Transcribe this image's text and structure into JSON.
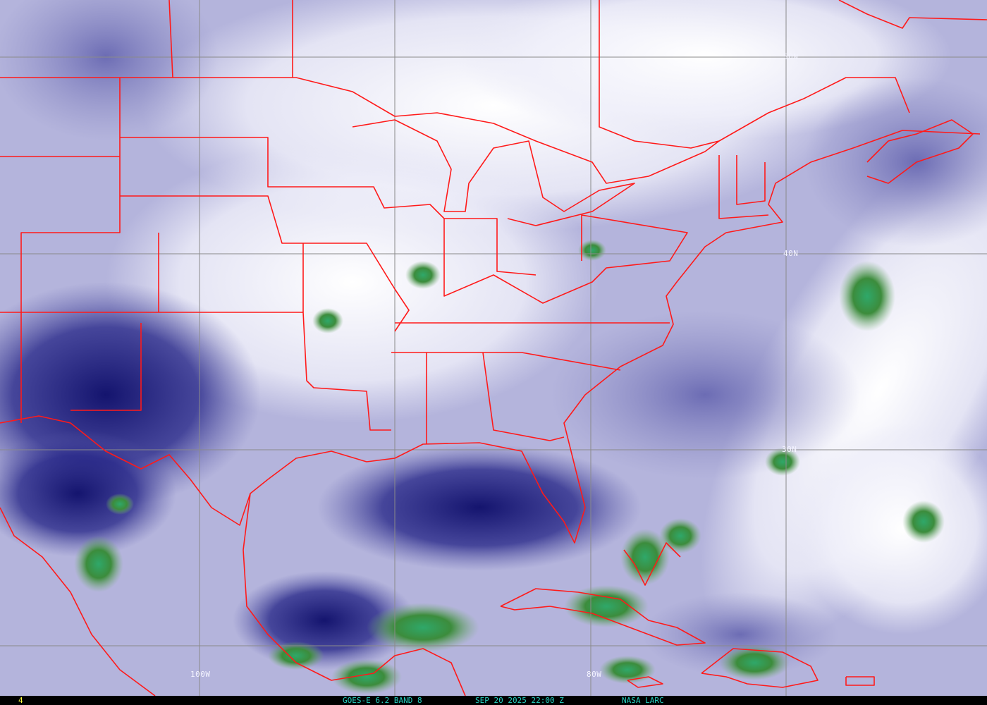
{
  "grid_labels": {
    "lat_50": "50N",
    "lat_40": "40N",
    "lat_30": "30N",
    "lon_100": "100W",
    "lon_80": "80W"
  },
  "footer": {
    "frame_number": "4",
    "product": "GOES-E 6.2 BAND 8",
    "timestamp": "SEP 20 2025 22:00 Z",
    "source": "NASA LARC"
  },
  "colors": {
    "border_lines": "#ff1a1a",
    "grid_lines": "#8a8a8a",
    "footer_text": "#27d3c3",
    "frame_number": "#ffff40",
    "dry_air": "#1c1c7a",
    "moist": "#ffffff",
    "cloud_tops": "#3a9a5a"
  }
}
